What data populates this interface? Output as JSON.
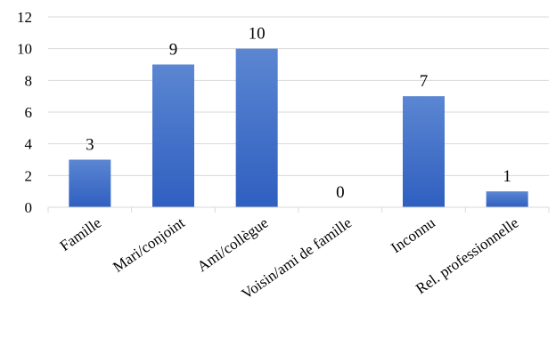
{
  "chart_data": {
    "type": "bar",
    "categories": [
      "Famille",
      "Mari/conjoint",
      "Ami/collègue",
      "Voisin/ami de famille",
      "Inconnu",
      "Rel. professionnelle"
    ],
    "values": [
      3,
      9,
      10,
      0,
      7,
      1
    ],
    "data_labels": [
      "3",
      "9",
      "10",
      "0",
      "7",
      "1"
    ],
    "yticks": [
      "0",
      "2",
      "4",
      "6",
      "8",
      "10",
      "12"
    ],
    "ylim": [
      0,
      12
    ],
    "title": "",
    "xlabel": "",
    "ylabel": "",
    "grid": true,
    "legend": "none",
    "bar_color_top": "#5b86d2",
    "bar_color_bottom": "#2f5fc0",
    "grid_color": "#d9d9d9"
  }
}
